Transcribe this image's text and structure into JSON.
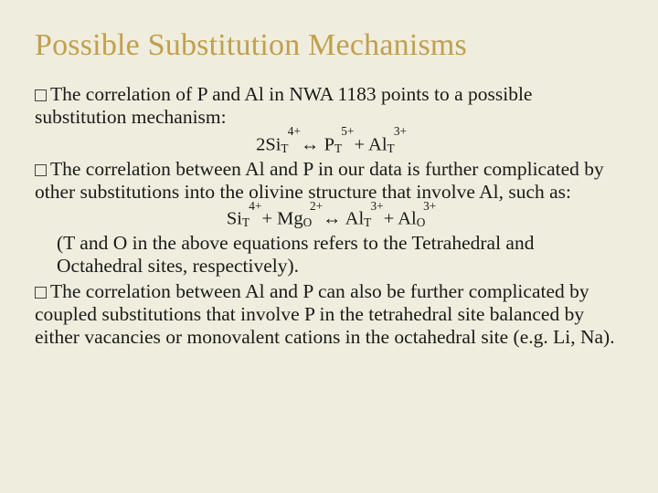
{
  "slide": {
    "background_color": "#efeddd",
    "title": {
      "text": "Possible Substitution Mechanisms",
      "color": "#c0a050"
    },
    "body_color": "#1a1a1a",
    "bullets": [
      {
        "text_parts": {
          "p0": "The correlation of P and Al in NWA 1183 points to a possible substitution mechanism:"
        },
        "equation": {
          "lead": "2Si",
          "t1s": "T",
          "t1p": "4+",
          "arrow": " ↔ P",
          "t2s": "T",
          "t2p": "5+",
          "plus": " + Al",
          "t3s": "T",
          "t3p": "3+"
        }
      },
      {
        "text_parts": {
          "p0": "The correlation between Al and P in our data is further complicated by other substitutions into the olivine structure that involve Al, such as:"
        },
        "equation": {
          "a": "Si",
          "a_s": "T",
          "a_p": "4+",
          "plus1": " + Mg",
          "b_s": "O",
          "b_p": "2+",
          "arrow": " ↔ Al",
          "c_s": "T",
          "c_p": "3+",
          "plus2": " + Al",
          "d_s": "O",
          "d_p": "3+"
        },
        "note": "(T and O in the above equations refers to the Tetrahedral and Octahedral sites, respectively)."
      },
      {
        "text_parts": {
          "p0": "The correlation between Al and P can also be further complicated by coupled substitutions that involve P in the tetrahedral site balanced by either vacancies or monovalent cations in the octahedral site (e.g. Li, Na)."
        }
      }
    ]
  }
}
